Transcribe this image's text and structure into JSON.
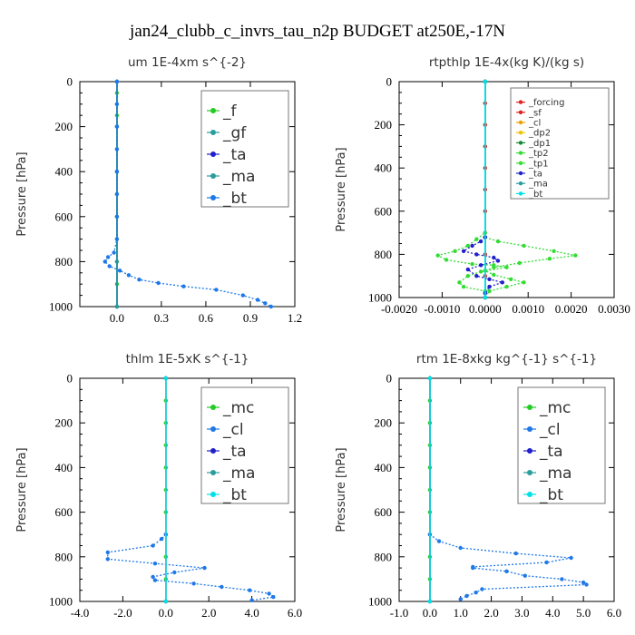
{
  "figure_title": "jan24_clubb_c_invrs_tau_n2p  BUDGET at250E,-17N",
  "ylabel": "Pressure  [hPa]",
  "colors": {
    "green": "#22cc22",
    "blue": "#1e78e8",
    "navy": "#2020cc",
    "teal": "#2a9d9d",
    "cyan": "#00e0e8",
    "red": "#dd2222",
    "orange": "#e8a000",
    "gold": "#f0c000",
    "lime": "#33dd33",
    "darkgreen": "#118833"
  },
  "chart_data": [
    {
      "type": "line",
      "title": "um   1E-4xm s^{-2}",
      "ylabel": "Pressure  [hPa]",
      "xlim": [
        -0.25,
        1.2
      ],
      "ylim": [
        1000,
        0
      ],
      "xticks": [
        0.0,
        0.3,
        0.6,
        0.9,
        1.2
      ],
      "xtick_labels": [
        "0.0",
        "0.3",
        "0.6",
        "0.9",
        "1.2"
      ],
      "yticks": [
        0,
        200,
        400,
        600,
        800,
        1000
      ],
      "legend_position": "top-right",
      "series": [
        {
          "name": "_f",
          "color": "green",
          "points": [
            [
              0,
              0
            ],
            [
              0,
              50
            ],
            [
              0,
              100
            ],
            [
              0,
              150
            ],
            [
              0,
              200
            ],
            [
              0,
              300
            ],
            [
              0,
              400
            ],
            [
              0,
              500
            ],
            [
              0,
              600
            ],
            [
              0,
              700
            ],
            [
              0,
              800
            ],
            [
              0,
              900
            ],
            [
              0,
              1000
            ]
          ]
        },
        {
          "name": "_gf",
          "color": "teal",
          "points": [
            [
              0,
              0
            ],
            [
              0,
              200
            ],
            [
              0,
              400
            ],
            [
              0,
              600
            ],
            [
              0,
              800
            ],
            [
              0,
              1000
            ]
          ]
        },
        {
          "name": "_ta",
          "color": "navy",
          "points": [
            [
              0,
              0
            ],
            [
              0,
              1000
            ]
          ]
        },
        {
          "name": "_ma",
          "color": "teal",
          "points": [
            [
              0,
              0
            ],
            [
              0,
              1000
            ]
          ]
        },
        {
          "name": "_bt",
          "color": "blue",
          "points": [
            [
              0,
              0
            ],
            [
              0,
              100
            ],
            [
              0,
              200
            ],
            [
              0,
              300
            ],
            [
              0,
              400
            ],
            [
              0,
              500
            ],
            [
              0,
              600
            ],
            [
              0,
              700
            ],
            [
              -0.02,
              760
            ],
            [
              -0.06,
              780
            ],
            [
              -0.08,
              800
            ],
            [
              -0.05,
              820
            ],
            [
              0.02,
              840
            ],
            [
              0.08,
              860
            ],
            [
              0.15,
              880
            ],
            [
              0.28,
              895
            ],
            [
              0.45,
              910
            ],
            [
              0.67,
              925
            ],
            [
              0.85,
              950
            ],
            [
              0.95,
              970
            ],
            [
              1.0,
              985
            ],
            [
              1.04,
              1000
            ]
          ]
        }
      ]
    },
    {
      "type": "line",
      "title": "rtpthlp   1E-4x(kg K)/(kg s)",
      "ylabel": "Pressure  [hPa]",
      "xlim": [
        -0.002,
        0.003
      ],
      "ylim": [
        1000,
        0
      ],
      "xticks": [
        -0.002,
        -0.001,
        0,
        0.001,
        0.002,
        0.003
      ],
      "xtick_labels": [
        "-0.0020",
        "-0.0010",
        "0.0000",
        "0.0010",
        "0.0020",
        "0.0030"
      ],
      "yticks": [
        0,
        200,
        400,
        600,
        800,
        1000
      ],
      "legend_position": "top-right",
      "series": [
        {
          "name": "_forcing",
          "color": "red",
          "points": [
            [
              0,
              0
            ],
            [
              0,
              100
            ],
            [
              0,
              200
            ],
            [
              0,
              300
            ],
            [
              0,
              400
            ],
            [
              0,
              500
            ],
            [
              0,
              600
            ],
            [
              0,
              700
            ],
            [
              0,
              800
            ],
            [
              0,
              900
            ],
            [
              0,
              1000
            ]
          ]
        },
        {
          "name": "_sf",
          "color": "red",
          "points": [
            [
              0,
              0
            ],
            [
              0,
              1000
            ]
          ]
        },
        {
          "name": "_cl",
          "color": "orange",
          "points": [
            [
              0,
              0
            ],
            [
              0,
              1000
            ]
          ]
        },
        {
          "name": "_dp2",
          "color": "gold",
          "points": [
            [
              0,
              0
            ],
            [
              0,
              1000
            ]
          ]
        },
        {
          "name": "_dp1",
          "color": "darkgreen",
          "points": [
            [
              0,
              0
            ],
            [
              0,
              1000
            ]
          ]
        },
        {
          "name": "_tp2",
          "color": "lime",
          "points": [
            [
              0,
              0
            ],
            [
              0,
              700
            ],
            [
              -0.0002,
              730
            ],
            [
              -0.0004,
              760
            ],
            [
              -0.0007,
              785
            ],
            [
              -0.0011,
              805
            ],
            [
              -0.0009,
              825
            ],
            [
              -0.0003,
              845
            ],
            [
              0.0002,
              850
            ],
            [
              0.0005,
              860
            ],
            [
              -0.0001,
              880
            ],
            [
              -0.0004,
              900
            ],
            [
              -0.0006,
              930
            ],
            [
              -0.0005,
              950
            ],
            [
              0.0,
              970
            ],
            [
              0.0,
              1000
            ]
          ]
        },
        {
          "name": "_tp1",
          "color": "lime",
          "points": [
            [
              0,
              0
            ],
            [
              0,
              720
            ],
            [
              0.0003,
              740
            ],
            [
              0.0009,
              760
            ],
            [
              0.0016,
              785
            ],
            [
              0.0021,
              805
            ],
            [
              0.0015,
              820
            ],
            [
              0.0008,
              840
            ],
            [
              0.0002,
              860
            ],
            [
              0.0,
              875
            ],
            [
              0.0002,
              895
            ],
            [
              0.0006,
              915
            ],
            [
              0.0009,
              930
            ],
            [
              0.0005,
              950
            ],
            [
              0.0001,
              970
            ],
            [
              0.0,
              1000
            ]
          ]
        },
        {
          "name": "_ta",
          "color": "navy",
          "points": [
            [
              0,
              0
            ],
            [
              0,
              720
            ],
            [
              -0.0001,
              740
            ],
            [
              -0.0003,
              760
            ],
            [
              -0.0005,
              785
            ],
            [
              -0.0002,
              800
            ],
            [
              0.0002,
              815
            ],
            [
              0.0003,
              830
            ],
            [
              -0.0001,
              850
            ],
            [
              -0.0004,
              870
            ],
            [
              -0.0002,
              900
            ],
            [
              0.0001,
              915
            ],
            [
              0.0004,
              930
            ],
            [
              0.0001,
              950
            ],
            [
              0,
              980
            ],
            [
              0,
              1000
            ]
          ]
        },
        {
          "name": "_ma",
          "color": "teal",
          "points": [
            [
              0,
              0
            ],
            [
              0,
              1000
            ]
          ]
        },
        {
          "name": "_bt",
          "color": "cyan",
          "points": [
            [
              0,
              0
            ],
            [
              0,
              1000
            ]
          ]
        }
      ]
    },
    {
      "type": "line",
      "title": "thlm   1E-5xK s^{-1}",
      "ylabel": "Pressure  [hPa]",
      "xlim": [
        -4.0,
        6.0
      ],
      "ylim": [
        1000,
        0
      ],
      "xticks": [
        -4.0,
        -2.0,
        0.0,
        2.0,
        4.0,
        6.0
      ],
      "xtick_labels": [
        "-4.0",
        "-2.0",
        "0.0",
        "2.0",
        "4.0",
        "6.0"
      ],
      "yticks": [
        0,
        200,
        400,
        600,
        800,
        1000
      ],
      "legend_position": "top-right",
      "series": [
        {
          "name": "_mc",
          "color": "green",
          "points": [
            [
              0,
              0
            ],
            [
              0,
              100
            ],
            [
              0,
              200
            ],
            [
              0,
              300
            ],
            [
              0,
              400
            ],
            [
              0,
              500
            ],
            [
              0,
              600
            ],
            [
              0,
              700
            ],
            [
              0,
              800
            ],
            [
              0,
              900
            ],
            [
              0,
              1000
            ]
          ]
        },
        {
          "name": "_cl",
          "color": "blue",
          "points": [
            [
              0,
              0
            ],
            [
              0,
              700
            ],
            [
              -0.2,
              720
            ],
            [
              -0.6,
              750
            ],
            [
              -2.7,
              780
            ],
            [
              -2.7,
              810
            ],
            [
              -0.5,
              830
            ],
            [
              1.8,
              850
            ],
            [
              0.4,
              870
            ],
            [
              -0.6,
              890
            ],
            [
              -0.5,
              905
            ],
            [
              1.3,
              920
            ],
            [
              2.6,
              935
            ],
            [
              3.9,
              950
            ],
            [
              4.8,
              965
            ],
            [
              5.0,
              980
            ],
            [
              4.0,
              995
            ]
          ]
        },
        {
          "name": "_ta",
          "color": "navy",
          "points": [
            [
              0,
              0
            ],
            [
              0,
              1000
            ]
          ]
        },
        {
          "name": "_ma",
          "color": "teal",
          "points": [
            [
              0,
              0
            ],
            [
              0,
              1000
            ]
          ]
        },
        {
          "name": "_bt",
          "color": "cyan",
          "points": [
            [
              0,
              0
            ],
            [
              0,
              1000
            ]
          ]
        }
      ]
    },
    {
      "type": "line",
      "title": "rtm   1E-8xkg kg^{-1} s^{-1}",
      "ylabel": "Pressure  [hPa]",
      "xlim": [
        -1.0,
        6.0
      ],
      "ylim": [
        1000,
        0
      ],
      "xticks": [
        -1.0,
        0.0,
        1.0,
        2.0,
        3.0,
        4.0,
        5.0,
        6.0
      ],
      "xtick_labels": [
        "-1.0",
        "0.0",
        "1.0",
        "2.0",
        "3.0",
        "4.0",
        "5.0",
        "6.0"
      ],
      "yticks": [
        0,
        200,
        400,
        600,
        800,
        1000
      ],
      "legend_position": "top-right",
      "series": [
        {
          "name": "_mc",
          "color": "green",
          "points": [
            [
              0,
              0
            ],
            [
              0,
              100
            ],
            [
              0,
              200
            ],
            [
              0,
              300
            ],
            [
              0,
              400
            ],
            [
              0,
              500
            ],
            [
              0,
              600
            ],
            [
              0,
              700
            ],
            [
              0,
              800
            ],
            [
              0,
              900
            ],
            [
              0,
              1000
            ]
          ]
        },
        {
          "name": "_cl",
          "color": "blue",
          "points": [
            [
              0,
              0
            ],
            [
              0,
              700
            ],
            [
              0.3,
              730
            ],
            [
              1.0,
              760
            ],
            [
              2.8,
              785
            ],
            [
              4.6,
              805
            ],
            [
              3.8,
              825
            ],
            [
              1.4,
              845
            ],
            [
              1.4,
              850
            ],
            [
              2.5,
              865
            ],
            [
              3.1,
              885
            ],
            [
              4.3,
              900
            ],
            [
              5.0,
              915
            ],
            [
              5.1,
              925
            ],
            [
              1.7,
              945
            ],
            [
              1.5,
              960
            ],
            [
              1.2,
              975
            ],
            [
              1.0,
              990
            ]
          ]
        },
        {
          "name": "_ta",
          "color": "navy",
          "points": [
            [
              0,
              0
            ],
            [
              0,
              1000
            ]
          ]
        },
        {
          "name": "_ma",
          "color": "teal",
          "points": [
            [
              0,
              0
            ],
            [
              0,
              1000
            ]
          ]
        },
        {
          "name": "_bt",
          "color": "cyan",
          "points": [
            [
              0,
              0
            ],
            [
              0,
              1000
            ]
          ]
        }
      ]
    }
  ]
}
